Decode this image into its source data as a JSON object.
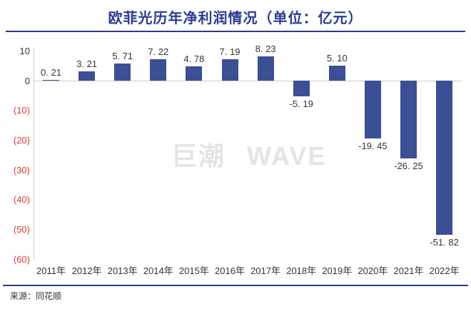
{
  "header": {
    "title": "欧菲光历年净利润情况（单位：亿元）"
  },
  "watermark": {
    "text": "巨潮 WAVE"
  },
  "footer": {
    "source": "来源：同花顺"
  },
  "colors": {
    "bar": "#3B4F94",
    "title": "#2B3A92",
    "rule": "#2B3A92",
    "axis_line": "#cccccc",
    "tick_text": "#333333",
    "negative_tick": "#DD3A33",
    "value_label": "#333333",
    "x_label": "#333333",
    "watermark": "#E4E4E4",
    "source_text": "#333333"
  },
  "chart_data": {
    "type": "bar",
    "title": "欧菲光历年净利润情况（单位：亿元）",
    "unit": "亿元",
    "categories": [
      "2011年",
      "2012年",
      "2013年",
      "2014年",
      "2015年",
      "2016年",
      "2017年",
      "2018年",
      "2019年",
      "2020年",
      "2021年",
      "2022年"
    ],
    "values": [
      0.21,
      3.21,
      5.71,
      7.22,
      4.78,
      7.19,
      8.23,
      -5.19,
      5.1,
      -19.45,
      -26.25,
      -51.82
    ],
    "value_labels": [
      "0. 21",
      "3. 21",
      "5. 71",
      "7. 22",
      "4. 78",
      "7. 19",
      "8. 23",
      "-5. 19",
      "5. 10",
      "-19. 45",
      "-26. 25",
      "-51. 82"
    ],
    "y_axis": {
      "range": [
        -60,
        10
      ],
      "negative_style": "parentheses-red",
      "ticks": [
        {
          "label": "10",
          "value": 10
        },
        {
          "label": "0",
          "value": 0
        },
        {
          "label": "(10)",
          "value": -10
        },
        {
          "label": "(20)",
          "value": -20
        },
        {
          "label": "(30)",
          "value": -30
        },
        {
          "label": "(40)",
          "value": -40
        },
        {
          "label": "(50)",
          "value": -50
        },
        {
          "label": "(60)",
          "value": -60
        }
      ]
    },
    "grid": "zero-line-only",
    "legend": "none"
  }
}
